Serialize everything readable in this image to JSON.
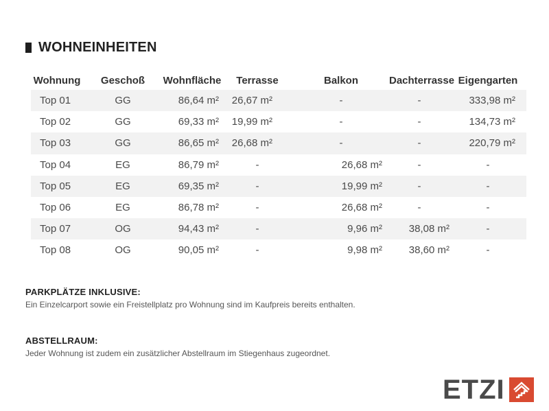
{
  "section_title": "WOHNEINHEITEN",
  "table": {
    "headers": [
      "Wohnung",
      "Geschoß",
      "Wohnfläche",
      "Terrasse",
      "Balkon",
      "Dachterrasse",
      "Eigengarten"
    ],
    "rows": [
      [
        "Top 01",
        "GG",
        "86,64 m²",
        "26,67 m²",
        "-",
        "-",
        "333,98 m²"
      ],
      [
        "Top 02",
        "GG",
        "69,33 m²",
        "19,99 m²",
        "-",
        "-",
        "134,73 m²"
      ],
      [
        "Top 03",
        "GG",
        "86,65 m²",
        "26,68 m²",
        "-",
        "-",
        "220,79 m²"
      ],
      [
        "Top 04",
        "EG",
        "86,79 m²",
        "-",
        "26,68 m²",
        "-",
        "-"
      ],
      [
        "Top 05",
        "EG",
        "69,35 m²",
        "-",
        "19,99 m²",
        "-",
        "-"
      ],
      [
        "Top 06",
        "EG",
        "86,78 m²",
        "-",
        "26,68 m²",
        "-",
        "-"
      ],
      [
        "Top 07",
        "OG",
        "94,43 m²",
        "-",
        "9,96 m²",
        "38,08 m²",
        "-"
      ],
      [
        "Top 08",
        "OG",
        "90,05 m²",
        "-",
        "9,98 m²",
        "38,60 m²",
        "-"
      ]
    ]
  },
  "notes": {
    "parking_heading": "PARKPLÄTZE INKLUSIVE:",
    "parking_text": "Ein Einzelcarport sowie ein Freistellplatz pro Wohnung sind im Kaufpreis bereits enthalten.",
    "storage_heading": "ABSTELLRAUM:",
    "storage_text": "Jeder Wohnung ist zudem ein zusätzlicher Abstellraum im Stiegenhaus zugeordnet."
  },
  "logo": {
    "word": "ETZI",
    "icon": "house-stairs-icon",
    "accent_color": "#d94a31"
  }
}
